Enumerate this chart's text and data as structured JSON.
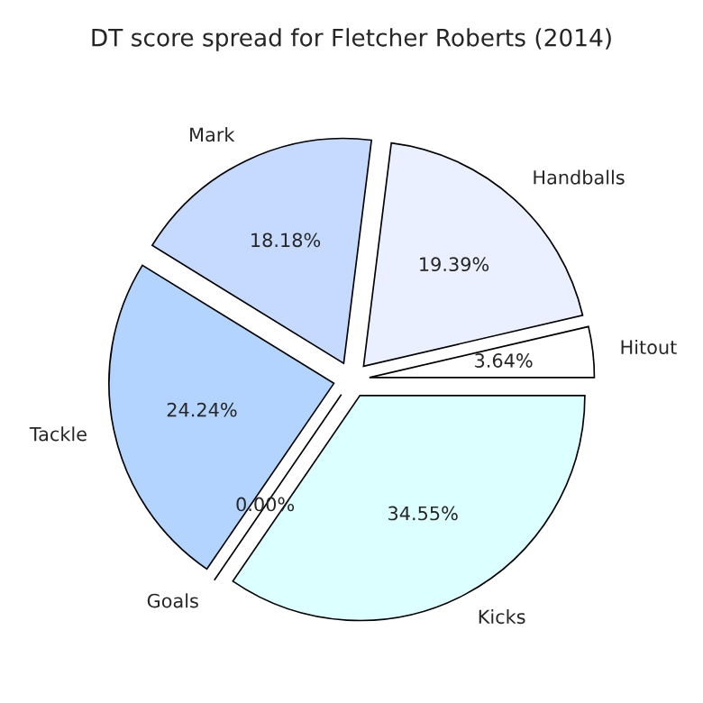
{
  "chart_data": {
    "type": "pie",
    "title": "DT score spread for Fletcher Roberts (2014)",
    "categories": [
      "Hitout",
      "Handballs",
      "Mark",
      "Tackle",
      "Goals",
      "Kicks"
    ],
    "values": [
      3.64,
      19.39,
      18.18,
      24.24,
      0.0,
      34.55
    ],
    "colors": [
      "#ffffff",
      "#eaf0ff",
      "#c6d9ff",
      "#b3d4ff",
      "#cce0ff",
      "#dcffff"
    ],
    "value_labels": [
      "3.64%",
      "19.39%",
      "18.18%",
      "24.24%",
      "0.00%",
      "34.55%"
    ]
  }
}
